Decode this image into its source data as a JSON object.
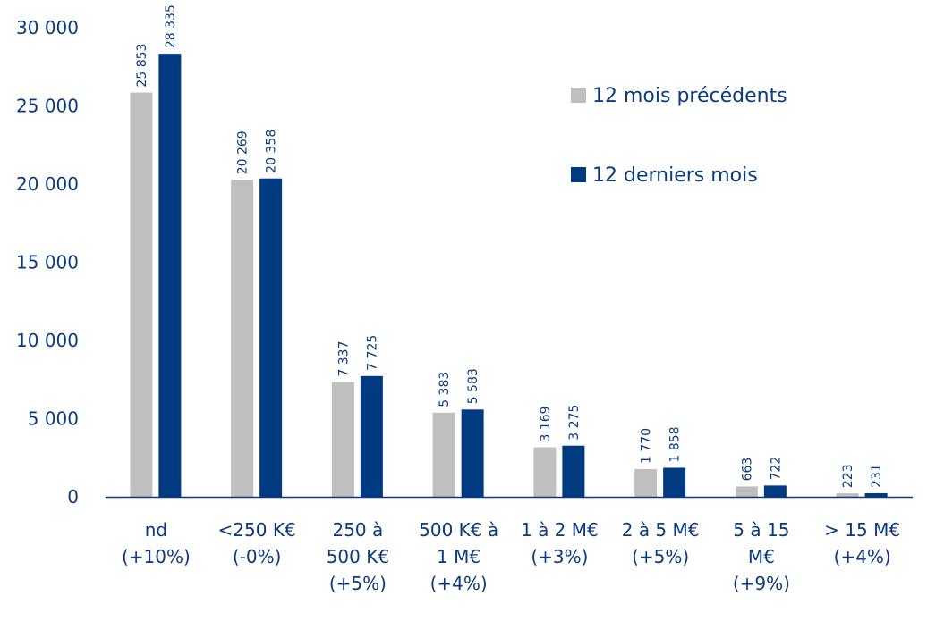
{
  "chart_data": {
    "type": "bar",
    "categories": [
      [
        "nd",
        "(+10%)"
      ],
      [
        "<250 K€",
        "(-0%)"
      ],
      [
        "250 à",
        "500 K€",
        "(+5%)"
      ],
      [
        "500 K€ à",
        "1 M€",
        "(+4%)"
      ],
      [
        "1 à 2 M€",
        "(+3%)"
      ],
      [
        "2 à 5 M€",
        "(+5%)"
      ],
      [
        "5 à 15",
        "M€",
        "(+9%)"
      ],
      [
        "> 15 M€",
        "(+4%)"
      ]
    ],
    "series": [
      {
        "name": "12 mois précédents",
        "color": "#bfbfbf",
        "values": [
          25853,
          20269,
          7337,
          5383,
          3169,
          1770,
          663,
          223
        ],
        "labels": [
          "25 853",
          "20 269",
          "7 337",
          "5 383",
          "3 169",
          "1 770",
          "663",
          "223"
        ]
      },
      {
        "name": "12 derniers mois",
        "color": "#003a80",
        "values": [
          28335,
          20358,
          7725,
          5583,
          3275,
          1858,
          722,
          231
        ],
        "labels": [
          "28 335",
          "20 358",
          "7 725",
          "5 583",
          "3 275",
          "1 858",
          "722",
          "231"
        ]
      }
    ],
    "ylim": [
      0,
      30000
    ],
    "yticks": [
      0,
      5000,
      10000,
      15000,
      20000,
      25000,
      30000
    ],
    "ytick_labels": [
      "0",
      "5 000",
      "10 000",
      "15 000",
      "20 000",
      "25 000",
      "30 000"
    ],
    "grid": false,
    "legend": "top-right",
    "text_color": "#0a3a80"
  }
}
